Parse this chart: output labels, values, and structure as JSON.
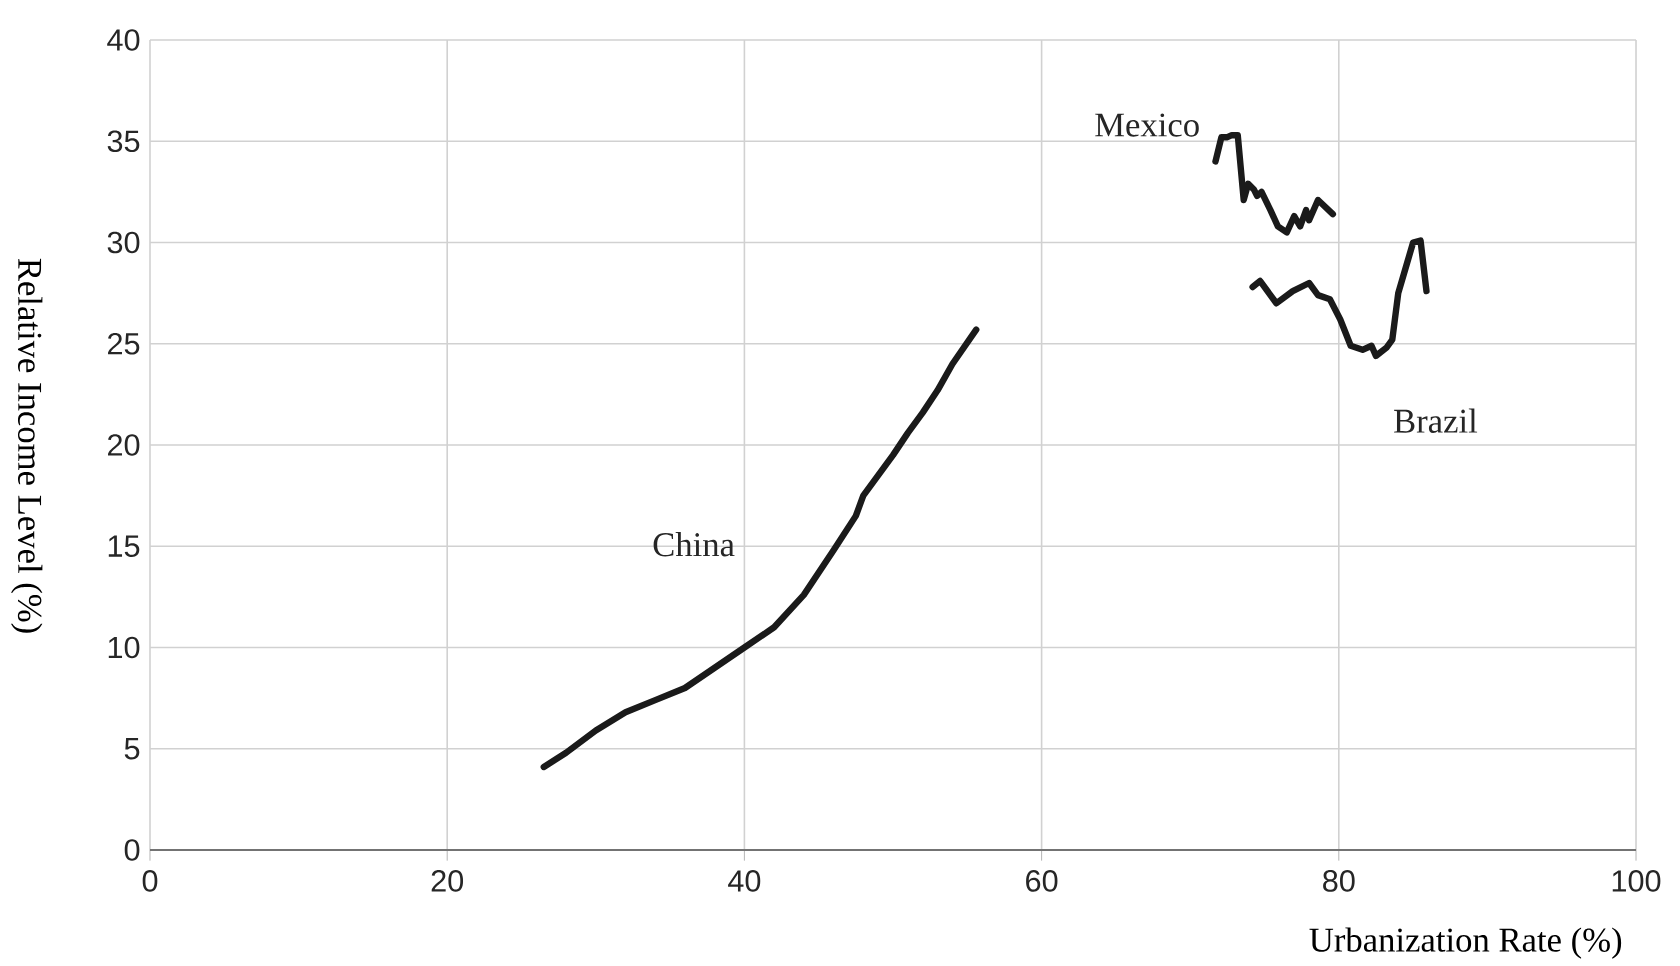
{
  "chart_data": {
    "type": "line",
    "xlabel": "Urbanization Rate (%)",
    "ylabel": "Relative Income Level (%)",
    "xlim": [
      0,
      100
    ],
    "xticks": [
      0,
      20,
      40,
      60,
      80,
      100
    ],
    "ylim": [
      0,
      40
    ],
    "yticks": [
      0,
      5,
      10,
      15,
      20,
      25,
      30,
      35,
      40
    ],
    "grid": true,
    "series": [
      {
        "name": "China",
        "color": "#1a1a1a",
        "x": [
          26.5,
          28,
          30,
          32,
          34,
          36,
          38,
          40,
          42,
          44,
          46,
          47.5,
          48,
          49,
          50,
          51,
          52,
          53,
          54,
          55.6
        ],
        "values": [
          4.1,
          4.8,
          5.9,
          6.8,
          7.4,
          8.0,
          9.0,
          10.0,
          11.0,
          12.6,
          14.8,
          16.5,
          17.5,
          18.5,
          19.5,
          20.6,
          21.6,
          22.7,
          24.0,
          25.7
        ]
      },
      {
        "name": "Mexico",
        "color": "#1a1a1a",
        "x": [
          71.7,
          72.1,
          72.5,
          72.8,
          73.2,
          73.6,
          73.9,
          74.3,
          74.5,
          74.8,
          75.4,
          75.9,
          76.5,
          77.0,
          77.4,
          77.8,
          78.0,
          78.6,
          79.6
        ],
        "values": [
          34.0,
          35.2,
          35.2,
          35.3,
          35.3,
          32.1,
          32.9,
          32.6,
          32.3,
          32.5,
          31.6,
          30.8,
          30.5,
          31.3,
          30.8,
          31.6,
          31.1,
          32.1,
          31.4
        ]
      },
      {
        "name": "Brazil",
        "color": "#1a1a1a",
        "x": [
          74.2,
          74.7,
          75.8,
          76.9,
          78.0,
          78.6,
          79.4,
          80.1,
          80.8,
          81.6,
          82.2,
          82.5,
          83.2,
          83.6,
          84.0,
          84.6,
          85.0,
          85.5,
          85.9
        ],
        "values": [
          27.8,
          28.1,
          27.0,
          27.6,
          28.0,
          27.4,
          27.2,
          26.2,
          24.9,
          24.7,
          24.9,
          24.4,
          24.8,
          25.2,
          27.5,
          29.0,
          30.0,
          30.1,
          27.6
        ]
      }
    ]
  }
}
